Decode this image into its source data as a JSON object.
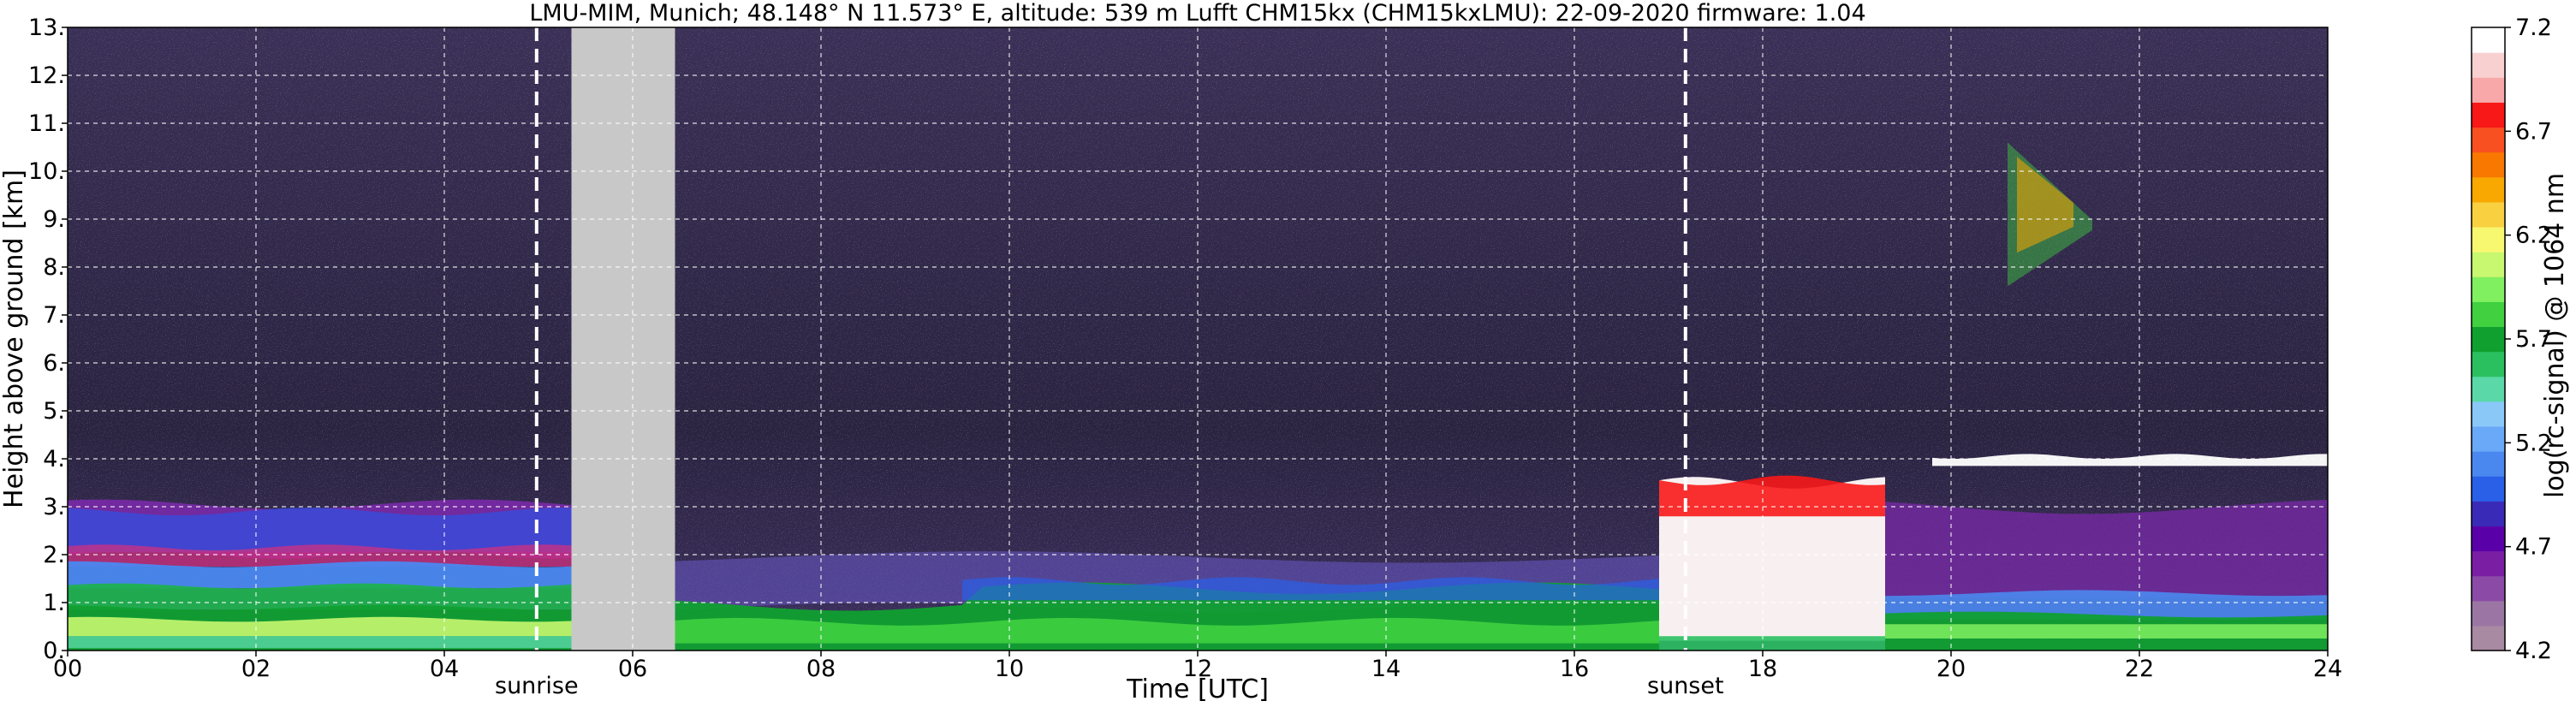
{
  "chart_data": {
    "type": "heatmap",
    "title": "LMU-MIM, Munich; 48.148° N 11.573° E, altitude: 539 m    Lufft CHM15kx (CHM15kxLMU): 22-09-2020    firmware: 1.04",
    "xlabel": "Time [UTC]",
    "ylabel": "Height above ground [km]",
    "xlim": [
      0,
      24
    ],
    "ylim": [
      0,
      13
    ],
    "x_ticks": [
      "00",
      "02",
      "04",
      "06",
      "08",
      "10",
      "12",
      "14",
      "16",
      "18",
      "20",
      "22",
      "24"
    ],
    "y_ticks": [
      "0.",
      "1.",
      "2.",
      "3.",
      "4.",
      "5.",
      "6.",
      "7.",
      "8.",
      "9.",
      "10.",
      "11.",
      "12.",
      "13."
    ],
    "grid": true,
    "colorbar": {
      "label": "log(rc-signal) @ 1064 nm",
      "range": [
        4.2,
        7.2
      ],
      "ticks": [
        "4.2",
        "4.7",
        "5.2",
        "5.7",
        "6.2",
        "6.7",
        "7.2"
      ],
      "colors": [
        "#a88aa2",
        "#9b76a4",
        "#8a4aa6",
        "#7a1ea4",
        "#5a00a8",
        "#3a2ab8",
        "#2a60e8",
        "#4a88f0",
        "#6aa8f8",
        "#8ac8f8",
        "#5ad8a8",
        "#2ac060",
        "#10a030",
        "#40d040",
        "#80f060",
        "#c8f870",
        "#f8f870",
        "#f8d040",
        "#f8a800",
        "#f87800",
        "#f85020",
        "#f81818",
        "#f8a8a8",
        "#f8d0d0",
        "#ffffff"
      ]
    },
    "gaps": [
      {
        "start": 5.35,
        "end": 6.45,
        "color": "#c8c8c8"
      }
    ],
    "markers": [
      {
        "label": "sunrise",
        "time": 4.98
      },
      {
        "label": "sunset",
        "time": 17.18
      }
    ]
  }
}
